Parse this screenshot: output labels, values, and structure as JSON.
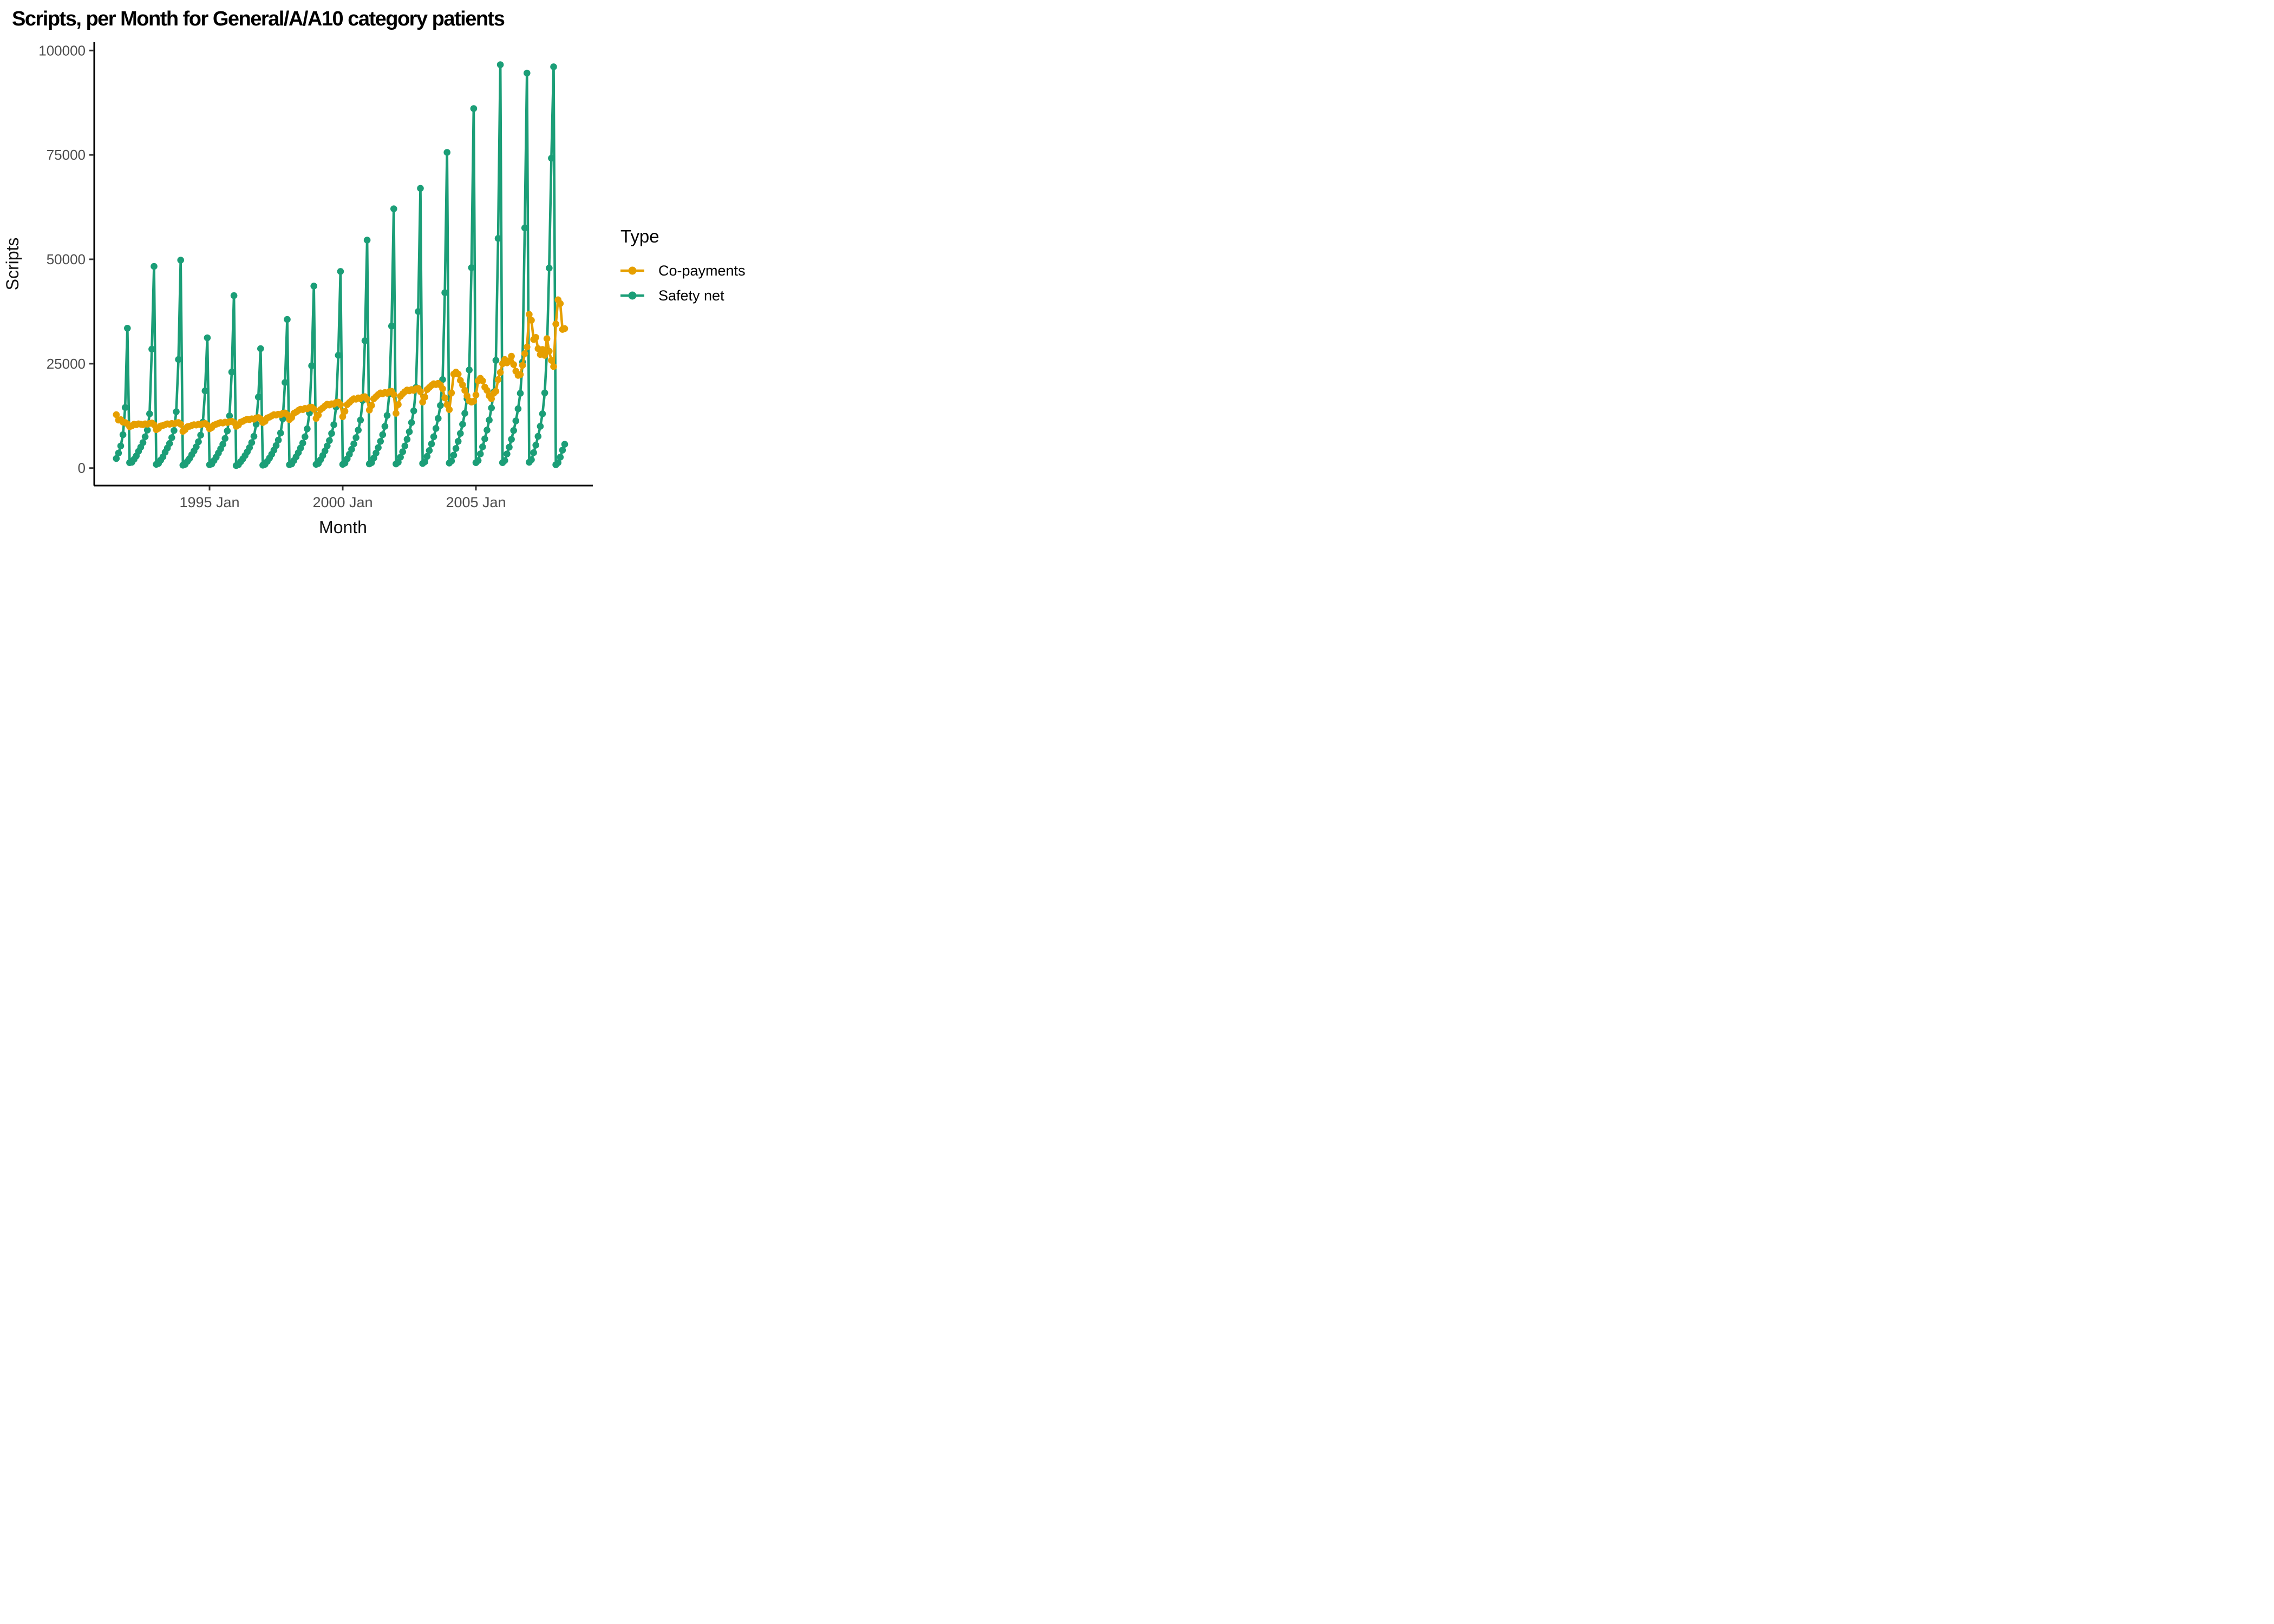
{
  "title": "Scripts, per Month for General/A/A10 category patients",
  "axes": {
    "x": {
      "title": "Month",
      "tick_labels": [
        "1995 Jan",
        "2000 Jan",
        "2005 Jan"
      ],
      "tick_month_indices": [
        42,
        102,
        162
      ]
    },
    "y": {
      "title": "Scripts",
      "tick_labels": [
        "0",
        "25000",
        "50000",
        "75000",
        "100000"
      ],
      "tick_values": [
        0,
        25000,
        50000,
        75000,
        100000
      ],
      "range": [
        0,
        100000
      ]
    }
  },
  "legend": {
    "title": "Type",
    "items": [
      {
        "label": "Co-payments",
        "color": "#E69F00"
      },
      {
        "label": "Safety net",
        "color": "#1B9E77"
      }
    ]
  },
  "chart_data": {
    "type": "line",
    "title": "Scripts, per Month for General/A/A10 category patients",
    "xlabel": "Month",
    "ylabel": "Scripts",
    "ylim": [
      0,
      100000
    ],
    "grid": false,
    "legend_position": "right",
    "x_start": "1991 Jul",
    "x_end": "2008 May",
    "x_frequency": "monthly",
    "x_tick_labels": [
      "1995 Jan",
      "2000 Jan",
      "2005 Jan"
    ],
    "series": [
      {
        "name": "Co-payments",
        "color": "#E69F00",
        "values": [
          12800,
          11500,
          11600,
          11000,
          10900,
          10600,
          9900,
          10100,
          10500,
          10400,
          10600,
          10500,
          10400,
          10600,
          10500,
          10700,
          10800,
          10400,
          9200,
          9500,
          10100,
          10200,
          10400,
          10600,
          10500,
          10700,
          10600,
          10800,
          10900,
          10500,
          8800,
          9200,
          9900,
          10000,
          10200,
          10400,
          10300,
          10500,
          10400,
          10600,
          10700,
          10300,
          9400,
          9700,
          10300,
          10500,
          10700,
          10900,
          10800,
          11000,
          10900,
          11100,
          11200,
          10900,
          10000,
          10300,
          11000,
          11200,
          11500,
          11700,
          11600,
          11800,
          11700,
          12000,
          12100,
          11800,
          10900,
          11200,
          12000,
          12200,
          12500,
          12800,
          12700,
          12900,
          12800,
          13100,
          13200,
          12800,
          11600,
          12100,
          13100,
          13400,
          13800,
          14100,
          14000,
          14300,
          14200,
          14500,
          14600,
          14100,
          11900,
          12700,
          14000,
          14400,
          14900,
          15300,
          15100,
          15400,
          15300,
          15700,
          15800,
          15200,
          12300,
          13600,
          15200,
          15700,
          16200,
          16600,
          16500,
          16800,
          16600,
          17000,
          17100,
          16500,
          13900,
          15000,
          16600,
          17100,
          17600,
          18000,
          17800,
          18100,
          17900,
          18300,
          18400,
          17600,
          13100,
          15200,
          17200,
          17800,
          18300,
          18700,
          18500,
          18800,
          18600,
          19000,
          19100,
          18300,
          15800,
          17000,
          18800,
          19300,
          19800,
          20200,
          20000,
          20300,
          19900,
          19000,
          16800,
          15200,
          14000,
          18000,
          22500,
          23000,
          22500,
          21000,
          19900,
          18600,
          17300,
          16100,
          15800,
          16000,
          17500,
          20900,
          21500,
          20900,
          19400,
          18600,
          17300,
          16600,
          17900,
          18400,
          21200,
          22900,
          25000,
          26000,
          25200,
          25600,
          26800,
          24800,
          23200,
          22200,
          22400,
          24600,
          27400,
          29000,
          36800,
          35400,
          30800,
          31300,
          28600,
          27200,
          28400,
          27000,
          31000,
          28000,
          25800,
          24300,
          34500,
          40300,
          39400,
          33200,
          33400
        ]
      },
      {
        "name": "Safety net",
        "color": "#1B9E77",
        "values": [
          2300,
          3600,
          5300,
          8000,
          14500,
          33500,
          1300,
          1400,
          2100,
          2900,
          4000,
          5000,
          6100,
          7500,
          9100,
          13000,
          28500,
          48300,
          900,
          1100,
          1900,
          2700,
          3800,
          4800,
          5900,
          7300,
          9000,
          13500,
          26000,
          49800,
          700,
          900,
          1600,
          2300,
          3200,
          4100,
          5100,
          6300,
          7900,
          11000,
          18500,
          31200,
          800,
          1000,
          1800,
          2600,
          3600,
          4600,
          5700,
          7100,
          8900,
          12500,
          23000,
          41300,
          600,
          800,
          1500,
          2200,
          3000,
          3900,
          4900,
          6100,
          7600,
          10500,
          17000,
          28600,
          700,
          900,
          1600,
          2400,
          3300,
          4300,
          5400,
          6700,
          8400,
          11800,
          20500,
          35600,
          800,
          1000,
          1800,
          2700,
          3700,
          4800,
          6000,
          7500,
          9400,
          13200,
          24500,
          43600,
          900,
          1100,
          2000,
          3000,
          4100,
          5300,
          6600,
          8300,
          10400,
          14600,
          27000,
          47100,
          900,
          1200,
          2200,
          3300,
          4500,
          5800,
          7300,
          9100,
          11500,
          16200,
          30500,
          54600,
          1000,
          1300,
          2400,
          3600,
          4900,
          6400,
          8000,
          10000,
          12600,
          17800,
          34000,
          62100,
          1000,
          1400,
          2600,
          3900,
          5300,
          6900,
          8700,
          10900,
          13700,
          19300,
          37500,
          67000,
          1100,
          1500,
          2800,
          4200,
          5800,
          7500,
          9500,
          11900,
          15000,
          21200,
          42000,
          75600,
          1200,
          1700,
          3100,
          4700,
          6400,
          8300,
          10500,
          13100,
          16600,
          23500,
          48000,
          86100,
          1300,
          1800,
          3400,
          5100,
          7000,
          9100,
          11500,
          14400,
          18200,
          25800,
          55000,
          96600,
          1300,
          1800,
          3400,
          5000,
          6900,
          9000,
          11300,
          14200,
          17900,
          25400,
          57500,
          94600,
          1400,
          2000,
          3700,
          5500,
          7600,
          10000,
          13000,
          18000,
          28000,
          47900,
          74200,
          96100,
          800,
          1300,
          2600,
          4300,
          5700
        ]
      }
    ]
  },
  "style": {
    "axis_line_color": "#000000",
    "tick_mark_color": "#333333",
    "tick_label_color": "#4d4d4d",
    "background": "#ffffff"
  }
}
